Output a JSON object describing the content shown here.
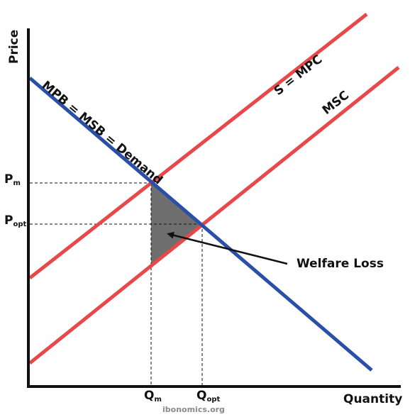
{
  "axes": {
    "y_title": "Price",
    "x_title": "Quantity"
  },
  "curves": {
    "demand": {
      "label": "MPB = MSB = Demand",
      "color": "#2a4fa8"
    },
    "private_supply": {
      "label": "S = MPC",
      "color": "#e8484a"
    },
    "social_supply": {
      "label": "MSC",
      "color": "#e8484a"
    }
  },
  "price_ticks": {
    "p_market": {
      "main": "P",
      "sub": "m"
    },
    "p_optimal": {
      "main": "P",
      "sub": "opt"
    }
  },
  "quantity_ticks": {
    "q_market": {
      "main": "Q",
      "sub": "m"
    },
    "q_optimal": {
      "main": "Q",
      "sub": "opt"
    }
  },
  "annotation": {
    "label": "Welfare Loss"
  },
  "welfare_loss_color": "#6e6e6e",
  "watermark": "ibonomics.org"
}
